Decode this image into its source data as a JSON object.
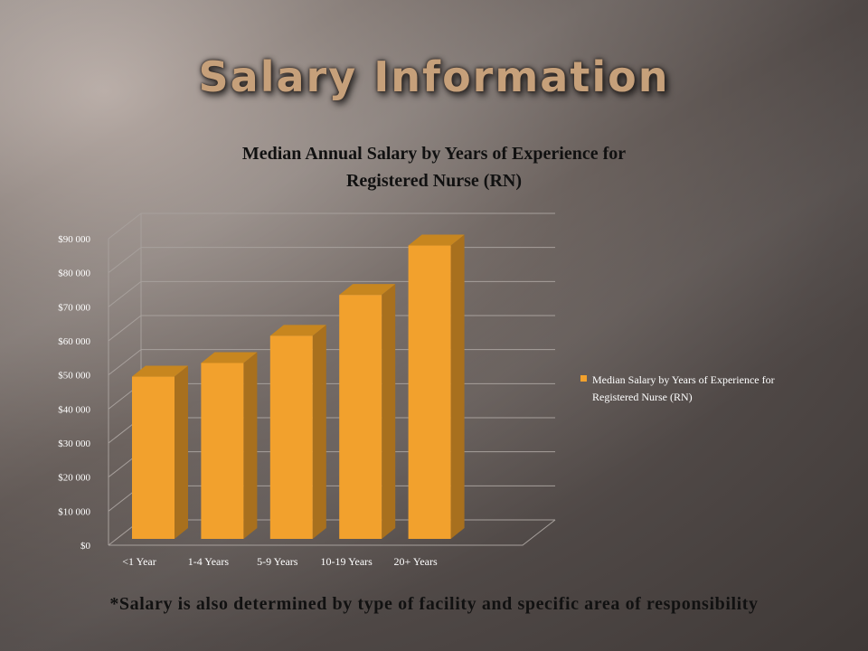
{
  "slide": {
    "title": "Salary Information",
    "footnote": "*Salary is also determined by type of facility and specific area of responsibility"
  },
  "colors": {
    "bar_front": "#F2A12D",
    "bar_side": "#A8701E",
    "bar_top": "#C7861F",
    "title_text": "#C6A07A"
  },
  "chart_data": {
    "type": "bar",
    "title_lines": [
      "Median Annual Salary by Years of Experience for",
      "Registered Nurse (RN)"
    ],
    "categories": [
      "<1 Year",
      "1-4 Years",
      "5-9 Years",
      "10-19 Years",
      "20+ Years"
    ],
    "series": [
      {
        "name": "Median Salary by Years of Experience for Registered Nurse (RN)",
        "values": [
          49500,
          53500,
          61500,
          73500,
          88000
        ]
      }
    ],
    "legend_lines": [
      "Median Salary by Years of Experience for",
      "Registered Nurse (RN)"
    ],
    "ylim": [
      0,
      90000
    ],
    "yticks": [
      0,
      10000,
      20000,
      30000,
      40000,
      50000,
      60000,
      70000,
      80000,
      90000
    ],
    "ytick_labels": [
      "$0",
      "$10 000",
      "$20 000",
      "$30 000",
      "$40 000",
      "$50 000",
      "$60 000",
      "$70 000",
      "$80 000",
      "$90 000"
    ],
    "grid": true,
    "legend_position": "right",
    "style": "3d"
  }
}
